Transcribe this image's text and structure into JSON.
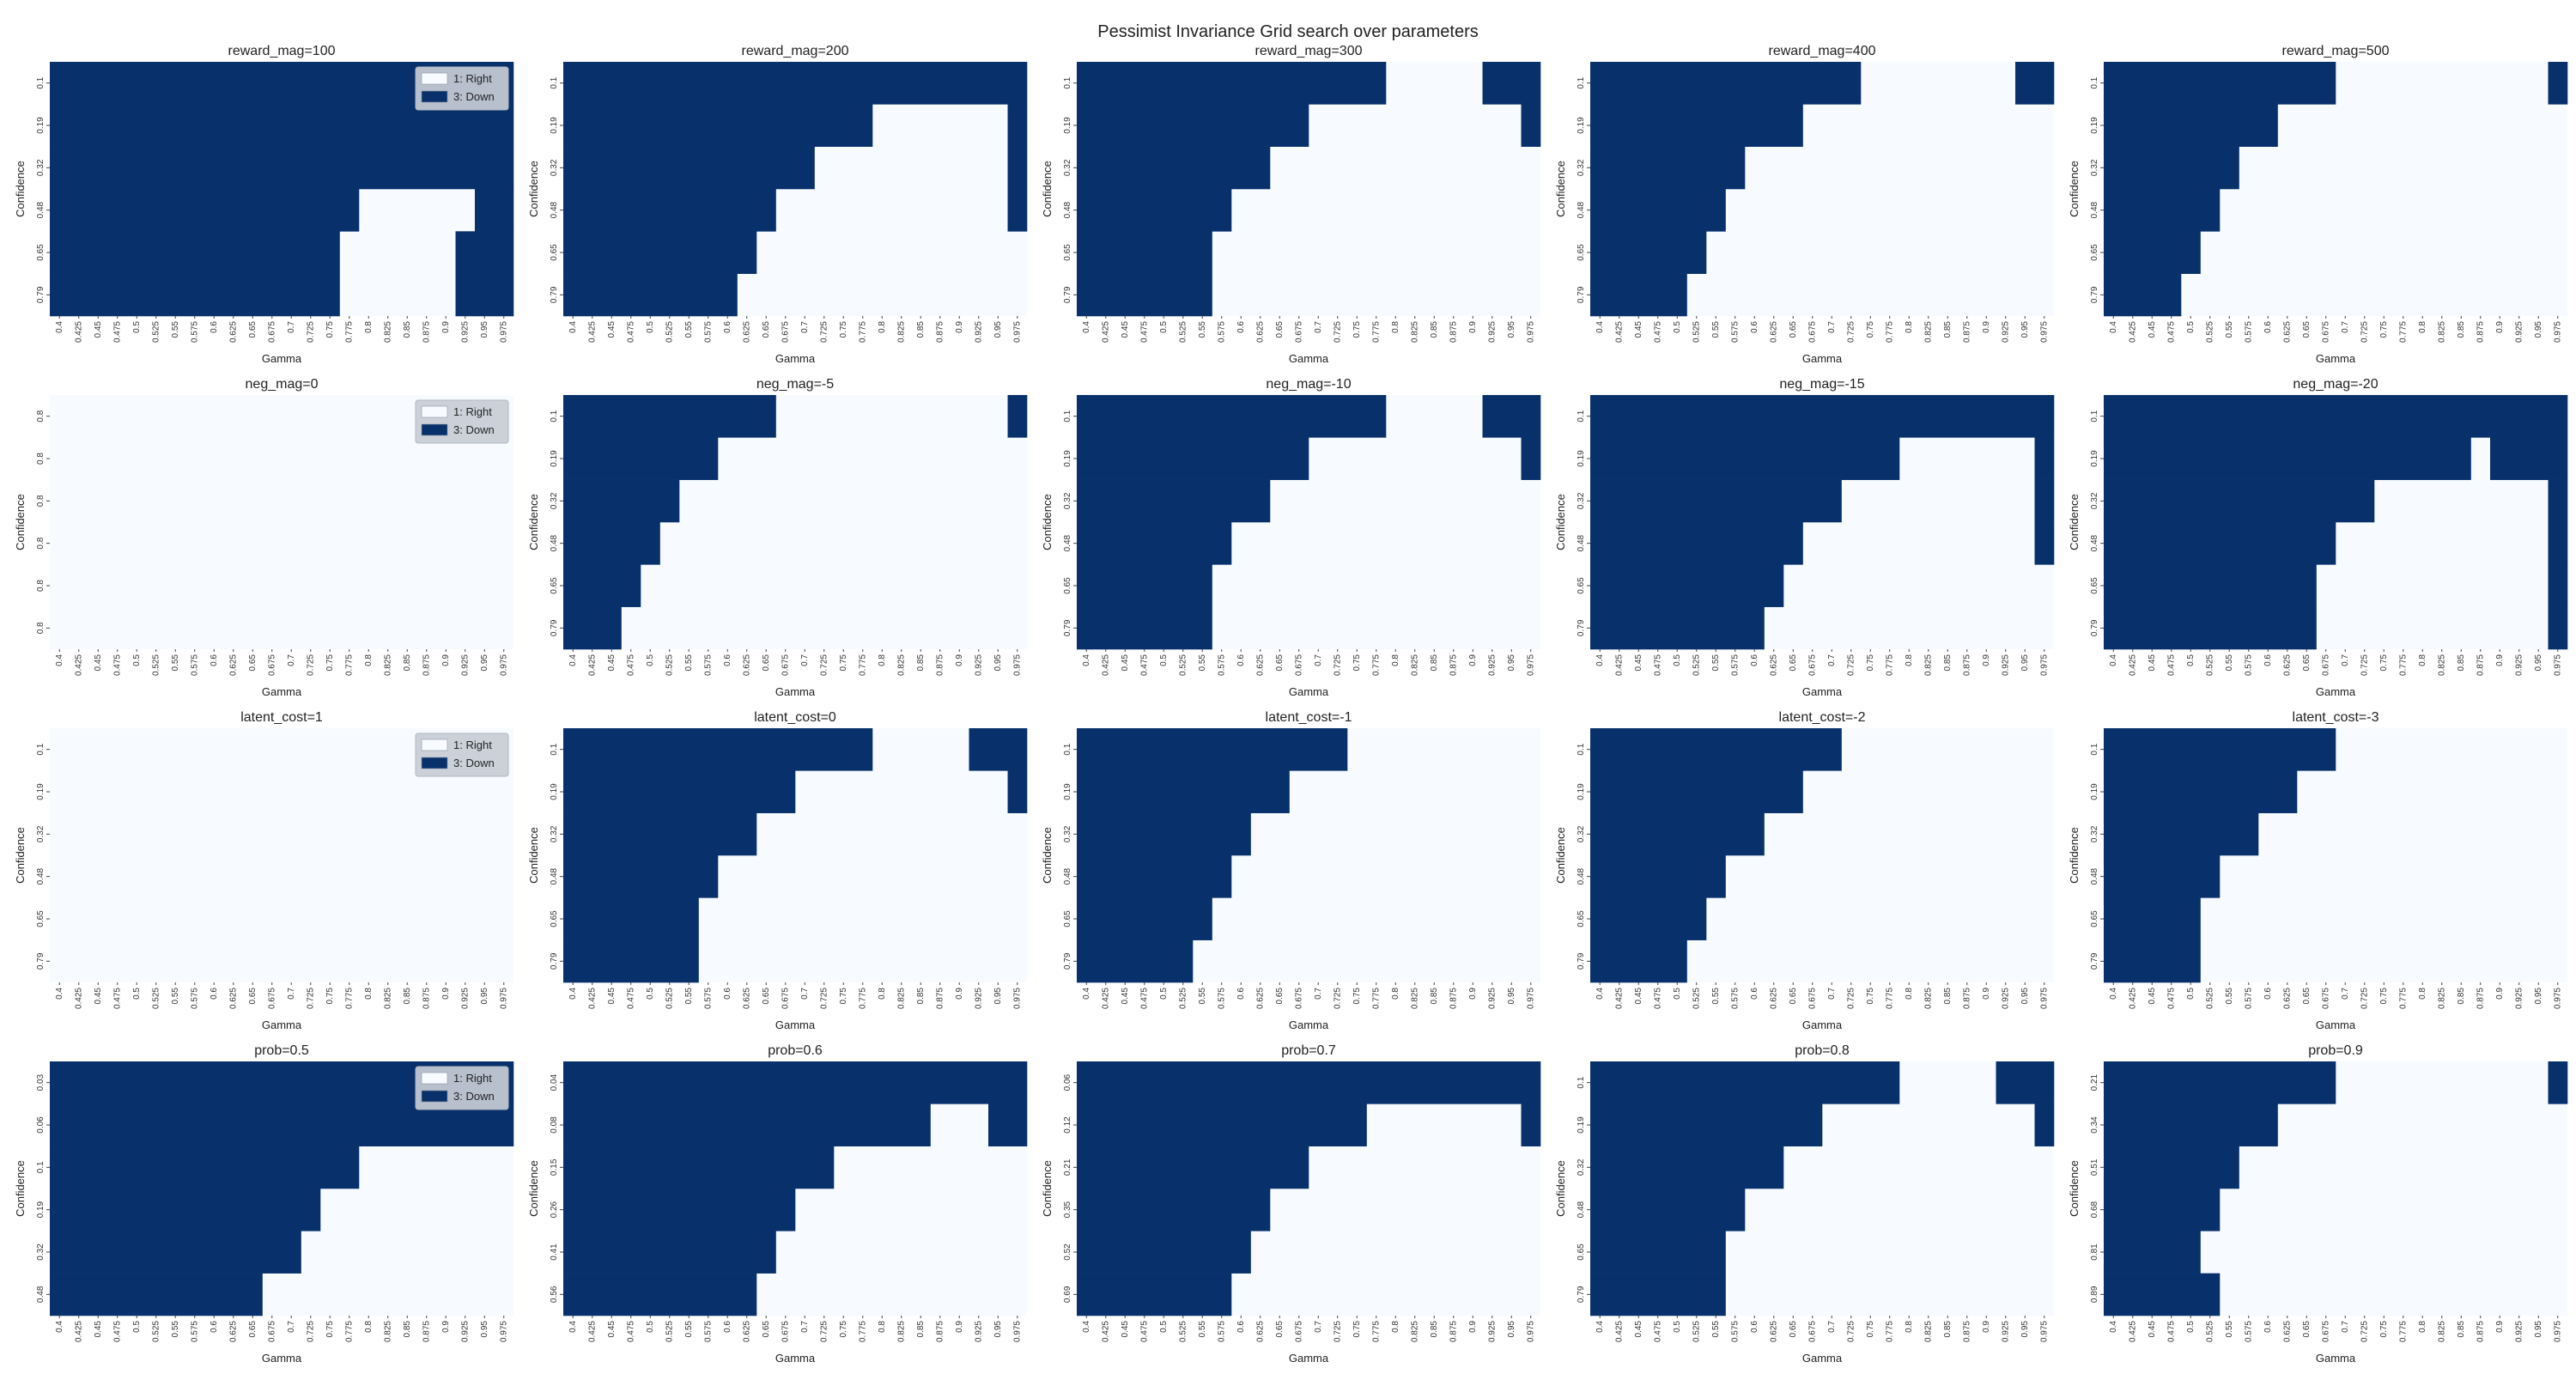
{
  "suptitle": "Pessimist Invariance Grid search over parameters",
  "colors": {
    "down": "#08306b",
    "right": "#f7fbff"
  },
  "legend": {
    "items": [
      {
        "label": "1: Right",
        "color": "#f7fbff"
      },
      {
        "label": "3: Down",
        "color": "#08306b"
      }
    ]
  },
  "gamma_ticks": [
    "0.4",
    "0.425",
    "0.45",
    "0.475",
    "0.5",
    "0.525",
    "0.55",
    "0.575",
    "0.6",
    "0.625",
    "0.65",
    "0.675",
    "0.7",
    "0.725",
    "0.75",
    "0.775",
    "0.8",
    "0.825",
    "0.85",
    "0.875",
    "0.9",
    "0.925",
    "0.95",
    "0.975"
  ],
  "chart_data": [
    {
      "type": "heatmap",
      "title": "reward_mag=100",
      "xlabel": "Gamma",
      "ylabel": "Confidence",
      "yticks": [
        "0.1",
        "0.19",
        "0.32",
        "0.48",
        "0.65",
        "0.79"
      ],
      "legend": true,
      "down_ranges": [
        [
          [
            0,
            23
          ]
        ],
        [
          [
            0,
            23
          ]
        ],
        [
          [
            0,
            23
          ]
        ],
        [
          [
            0,
            15
          ],
          [
            22,
            23
          ]
        ],
        [
          [
            0,
            14
          ],
          [
            21,
            23
          ]
        ],
        [
          [
            0,
            14
          ],
          [
            21,
            23
          ]
        ]
      ]
    },
    {
      "type": "heatmap",
      "title": "reward_mag=200",
      "xlabel": "Gamma",
      "ylabel": "Confidence",
      "yticks": [
        "0.1",
        "0.19",
        "0.32",
        "0.48",
        "0.65",
        "0.79"
      ],
      "legend": false,
      "down_ranges": [
        [
          [
            0,
            23
          ]
        ],
        [
          [
            0,
            15
          ],
          [
            23,
            23
          ]
        ],
        [
          [
            0,
            12
          ],
          [
            23,
            23
          ]
        ],
        [
          [
            0,
            10
          ],
          [
            23,
            23
          ]
        ],
        [
          [
            0,
            9
          ]
        ],
        [
          [
            0,
            8
          ]
        ]
      ]
    },
    {
      "type": "heatmap",
      "title": "reward_mag=300",
      "xlabel": "Gamma",
      "ylabel": "Confidence",
      "yticks": [
        "0.1",
        "0.19",
        "0.32",
        "0.48",
        "0.65",
        "0.79"
      ],
      "legend": false,
      "down_ranges": [
        [
          [
            0,
            15
          ],
          [
            21,
            23
          ]
        ],
        [
          [
            0,
            11
          ],
          [
            23,
            23
          ]
        ],
        [
          [
            0,
            9
          ]
        ],
        [
          [
            0,
            7
          ]
        ],
        [
          [
            0,
            6
          ]
        ],
        [
          [
            0,
            6
          ]
        ]
      ]
    },
    {
      "type": "heatmap",
      "title": "reward_mag=400",
      "xlabel": "Gamma",
      "ylabel": "Confidence",
      "yticks": [
        "0.1",
        "0.19",
        "0.32",
        "0.48",
        "0.65",
        "0.79"
      ],
      "legend": false,
      "down_ranges": [
        [
          [
            0,
            13
          ],
          [
            22,
            23
          ]
        ],
        [
          [
            0,
            10
          ]
        ],
        [
          [
            0,
            7
          ]
        ],
        [
          [
            0,
            6
          ]
        ],
        [
          [
            0,
            5
          ]
        ],
        [
          [
            0,
            4
          ]
        ]
      ]
    },
    {
      "type": "heatmap",
      "title": "reward_mag=500",
      "xlabel": "Gamma",
      "ylabel": "Confidence",
      "yticks": [
        "0.1",
        "0.19",
        "0.32",
        "0.48",
        "0.65",
        "0.79"
      ],
      "legend": false,
      "down_ranges": [
        [
          [
            0,
            11
          ],
          [
            23,
            23
          ]
        ],
        [
          [
            0,
            8
          ]
        ],
        [
          [
            0,
            6
          ]
        ],
        [
          [
            0,
            5
          ]
        ],
        [
          [
            0,
            4
          ]
        ],
        [
          [
            0,
            3
          ]
        ]
      ]
    },
    {
      "type": "heatmap",
      "title": "neg_mag=0",
      "xlabel": "Gamma",
      "ylabel": "Confidence",
      "yticks": [
        "0.8",
        "0.8",
        "0.8",
        "0.8",
        "0.8",
        "0.8"
      ],
      "legend": true,
      "down_ranges": [
        [],
        [],
        [],
        [],
        [],
        []
      ]
    },
    {
      "type": "heatmap",
      "title": "neg_mag=-5",
      "xlabel": "Gamma",
      "ylabel": "Confidence",
      "yticks": [
        "0.1",
        "0.19",
        "0.32",
        "0.48",
        "0.65",
        "0.79"
      ],
      "legend": false,
      "down_ranges": [
        [
          [
            0,
            10
          ],
          [
            23,
            23
          ]
        ],
        [
          [
            0,
            7
          ]
        ],
        [
          [
            0,
            5
          ]
        ],
        [
          [
            0,
            4
          ]
        ],
        [
          [
            0,
            3
          ]
        ],
        [
          [
            0,
            2
          ]
        ]
      ]
    },
    {
      "type": "heatmap",
      "title": "neg_mag=-10",
      "xlabel": "Gamma",
      "ylabel": "Confidence",
      "yticks": [
        "0.1",
        "0.19",
        "0.32",
        "0.48",
        "0.65",
        "0.79"
      ],
      "legend": false,
      "down_ranges": [
        [
          [
            0,
            15
          ],
          [
            21,
            23
          ]
        ],
        [
          [
            0,
            11
          ],
          [
            23,
            23
          ]
        ],
        [
          [
            0,
            9
          ]
        ],
        [
          [
            0,
            7
          ]
        ],
        [
          [
            0,
            6
          ]
        ],
        [
          [
            0,
            6
          ]
        ]
      ]
    },
    {
      "type": "heatmap",
      "title": "neg_mag=-15",
      "xlabel": "Gamma",
      "ylabel": "Confidence",
      "yticks": [
        "0.1",
        "0.19",
        "0.32",
        "0.48",
        "0.65",
        "0.79"
      ],
      "legend": false,
      "down_ranges": [
        [
          [
            0,
            23
          ]
        ],
        [
          [
            0,
            15
          ],
          [
            23,
            23
          ]
        ],
        [
          [
            0,
            12
          ],
          [
            23,
            23
          ]
        ],
        [
          [
            0,
            10
          ],
          [
            23,
            23
          ]
        ],
        [
          [
            0,
            9
          ]
        ],
        [
          [
            0,
            8
          ]
        ]
      ]
    },
    {
      "type": "heatmap",
      "title": "neg_mag=-20",
      "xlabel": "Gamma",
      "ylabel": "Confidence",
      "yticks": [
        "0.1",
        "0.19",
        "0.32",
        "0.48",
        "0.65",
        "0.79"
      ],
      "legend": false,
      "down_ranges": [
        [
          [
            0,
            23
          ]
        ],
        [
          [
            0,
            18
          ],
          [
            20,
            23
          ]
        ],
        [
          [
            0,
            13
          ],
          [
            23,
            23
          ]
        ],
        [
          [
            0,
            11
          ],
          [
            23,
            23
          ]
        ],
        [
          [
            0,
            10
          ],
          [
            23,
            23
          ]
        ],
        [
          [
            0,
            10
          ],
          [
            23,
            23
          ]
        ]
      ]
    },
    {
      "type": "heatmap",
      "title": "latent_cost=1",
      "xlabel": "Gamma",
      "ylabel": "Confidence",
      "yticks": [
        "0.1",
        "0.19",
        "0.32",
        "0.48",
        "0.65",
        "0.79"
      ],
      "legend": true,
      "down_ranges": [
        [],
        [],
        [],
        [],
        [],
        []
      ]
    },
    {
      "type": "heatmap",
      "title": "latent_cost=0",
      "xlabel": "Gamma",
      "ylabel": "Confidence",
      "yticks": [
        "0.1",
        "0.19",
        "0.32",
        "0.48",
        "0.65",
        "0.79"
      ],
      "legend": false,
      "down_ranges": [
        [
          [
            0,
            15
          ],
          [
            21,
            23
          ]
        ],
        [
          [
            0,
            11
          ],
          [
            23,
            23
          ]
        ],
        [
          [
            0,
            9
          ]
        ],
        [
          [
            0,
            7
          ]
        ],
        [
          [
            0,
            6
          ]
        ],
        [
          [
            0,
            6
          ]
        ]
      ]
    },
    {
      "type": "heatmap",
      "title": "latent_cost=-1",
      "xlabel": "Gamma",
      "ylabel": "Confidence",
      "yticks": [
        "0.1",
        "0.19",
        "0.32",
        "0.48",
        "0.65",
        "0.79"
      ],
      "legend": false,
      "down_ranges": [
        [
          [
            0,
            13
          ]
        ],
        [
          [
            0,
            10
          ]
        ],
        [
          [
            0,
            8
          ]
        ],
        [
          [
            0,
            7
          ]
        ],
        [
          [
            0,
            6
          ]
        ],
        [
          [
            0,
            5
          ]
        ]
      ]
    },
    {
      "type": "heatmap",
      "title": "latent_cost=-2",
      "xlabel": "Gamma",
      "ylabel": "Confidence",
      "yticks": [
        "0.1",
        "0.19",
        "0.32",
        "0.48",
        "0.65",
        "0.79"
      ],
      "legend": false,
      "down_ranges": [
        [
          [
            0,
            12
          ]
        ],
        [
          [
            0,
            10
          ]
        ],
        [
          [
            0,
            8
          ]
        ],
        [
          [
            0,
            6
          ]
        ],
        [
          [
            0,
            5
          ]
        ],
        [
          [
            0,
            4
          ]
        ]
      ]
    },
    {
      "type": "heatmap",
      "title": "latent_cost=-3",
      "xlabel": "Gamma",
      "ylabel": "Confidence",
      "yticks": [
        "0.1",
        "0.19",
        "0.32",
        "0.48",
        "0.65",
        "0.79"
      ],
      "legend": false,
      "down_ranges": [
        [
          [
            0,
            11
          ]
        ],
        [
          [
            0,
            9
          ]
        ],
        [
          [
            0,
            7
          ]
        ],
        [
          [
            0,
            5
          ]
        ],
        [
          [
            0,
            4
          ]
        ],
        [
          [
            0,
            4
          ]
        ]
      ]
    },
    {
      "type": "heatmap",
      "title": "prob=0.5",
      "xlabel": "Gamma",
      "ylabel": "Confidence",
      "yticks": [
        "0.03",
        "0.06",
        "0.1",
        "0.19",
        "0.32",
        "0.48"
      ],
      "legend": true,
      "down_ranges": [
        [
          [
            0,
            23
          ]
        ],
        [
          [
            0,
            23
          ]
        ],
        [
          [
            0,
            15
          ]
        ],
        [
          [
            0,
            13
          ]
        ],
        [
          [
            0,
            12
          ]
        ],
        [
          [
            0,
            10
          ]
        ]
      ]
    },
    {
      "type": "heatmap",
      "title": "prob=0.6",
      "xlabel": "Gamma",
      "ylabel": "Confidence",
      "yticks": [
        "0.04",
        "0.08",
        "0.15",
        "0.26",
        "0.41",
        "0.56"
      ],
      "legend": false,
      "down_ranges": [
        [
          [
            0,
            23
          ]
        ],
        [
          [
            0,
            18
          ],
          [
            22,
            23
          ]
        ],
        [
          [
            0,
            13
          ]
        ],
        [
          [
            0,
            11
          ]
        ],
        [
          [
            0,
            10
          ]
        ],
        [
          [
            0,
            9
          ]
        ]
      ]
    },
    {
      "type": "heatmap",
      "title": "prob=0.7",
      "xlabel": "Gamma",
      "ylabel": "Confidence",
      "yticks": [
        "0.06",
        "0.12",
        "0.21",
        "0.35",
        "0.52",
        "0.69"
      ],
      "legend": false,
      "down_ranges": [
        [
          [
            0,
            23
          ]
        ],
        [
          [
            0,
            14
          ],
          [
            23,
            23
          ]
        ],
        [
          [
            0,
            11
          ]
        ],
        [
          [
            0,
            9
          ]
        ],
        [
          [
            0,
            8
          ]
        ],
        [
          [
            0,
            7
          ]
        ]
      ]
    },
    {
      "type": "heatmap",
      "title": "prob=0.8",
      "xlabel": "Gamma",
      "ylabel": "Confidence",
      "yticks": [
        "0.1",
        "0.19",
        "0.32",
        "0.48",
        "0.65",
        "0.79"
      ],
      "legend": false,
      "down_ranges": [
        [
          [
            0,
            15
          ],
          [
            21,
            23
          ]
        ],
        [
          [
            0,
            11
          ],
          [
            23,
            23
          ]
        ],
        [
          [
            0,
            9
          ]
        ],
        [
          [
            0,
            7
          ]
        ],
        [
          [
            0,
            6
          ]
        ],
        [
          [
            0,
            6
          ]
        ]
      ]
    },
    {
      "type": "heatmap",
      "title": "prob=0.9",
      "xlabel": "Gamma",
      "ylabel": "Confidence",
      "yticks": [
        "0.21",
        "0.34",
        "0.51",
        "0.68",
        "0.81",
        "0.89"
      ],
      "legend": false,
      "down_ranges": [
        [
          [
            0,
            11
          ],
          [
            23,
            23
          ]
        ],
        [
          [
            0,
            8
          ]
        ],
        [
          [
            0,
            6
          ]
        ],
        [
          [
            0,
            5
          ]
        ],
        [
          [
            0,
            4
          ]
        ],
        [
          [
            0,
            5
          ]
        ]
      ]
    }
  ]
}
